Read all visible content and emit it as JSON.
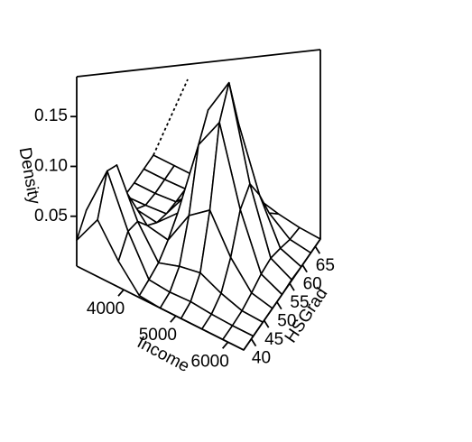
{
  "chart_data": {
    "type": "surface",
    "xlabel": "Income",
    "ylabel": "HSGrad",
    "zlabel": "Density",
    "x": [
      3100,
      3500,
      3900,
      4300,
      4700,
      5100,
      5500,
      5900,
      6300
    ],
    "y": [
      37,
      40.75,
      44.5,
      48.25,
      52,
      55.75,
      59.5,
      63.25,
      67
    ],
    "z": [
      [
        0.026,
        0.042,
        0.038,
        0.019,
        0.006,
        0.001,
        0,
        0,
        0
      ],
      [
        0.057,
        0.092,
        0.084,
        0.043,
        0.012,
        0.002,
        0,
        0,
        0
      ],
      [
        0.026,
        0.042,
        0.038,
        0.02,
        0.009,
        0.004,
        0.002,
        0.001,
        0
      ],
      [
        0.002,
        0.004,
        0.007,
        0.016,
        0.029,
        0.034,
        0.023,
        0.009,
        0.002
      ],
      [
        0,
        0.002,
        0.014,
        0.051,
        0.108,
        0.129,
        0.086,
        0.032,
        0.007
      ],
      [
        0,
        0.003,
        0.018,
        0.067,
        0.141,
        0.167,
        0.112,
        0.042,
        0.009
      ],
      [
        0,
        0.001,
        0.008,
        0.03,
        0.064,
        0.076,
        0.051,
        0.019,
        0.004
      ],
      [
        0,
        0,
        0.001,
        0.005,
        0.01,
        0.012,
        0.008,
        0.003,
        0.001
      ],
      [
        0,
        0,
        0,
        0,
        0,
        0.001,
        0,
        0,
        0
      ]
    ],
    "xlim": [
      3100,
      6300
    ],
    "ylim": [
      37,
      67
    ],
    "zlim": [
      0,
      0.19
    ],
    "xticks": [
      4000,
      5000,
      6000
    ],
    "yticks": [
      40,
      45,
      50,
      55,
      60,
      65
    ],
    "zticks": [
      0.05,
      {
        "value": 0.1,
        "label": "0.10"
      },
      0.15
    ],
    "color": "#000000"
  }
}
